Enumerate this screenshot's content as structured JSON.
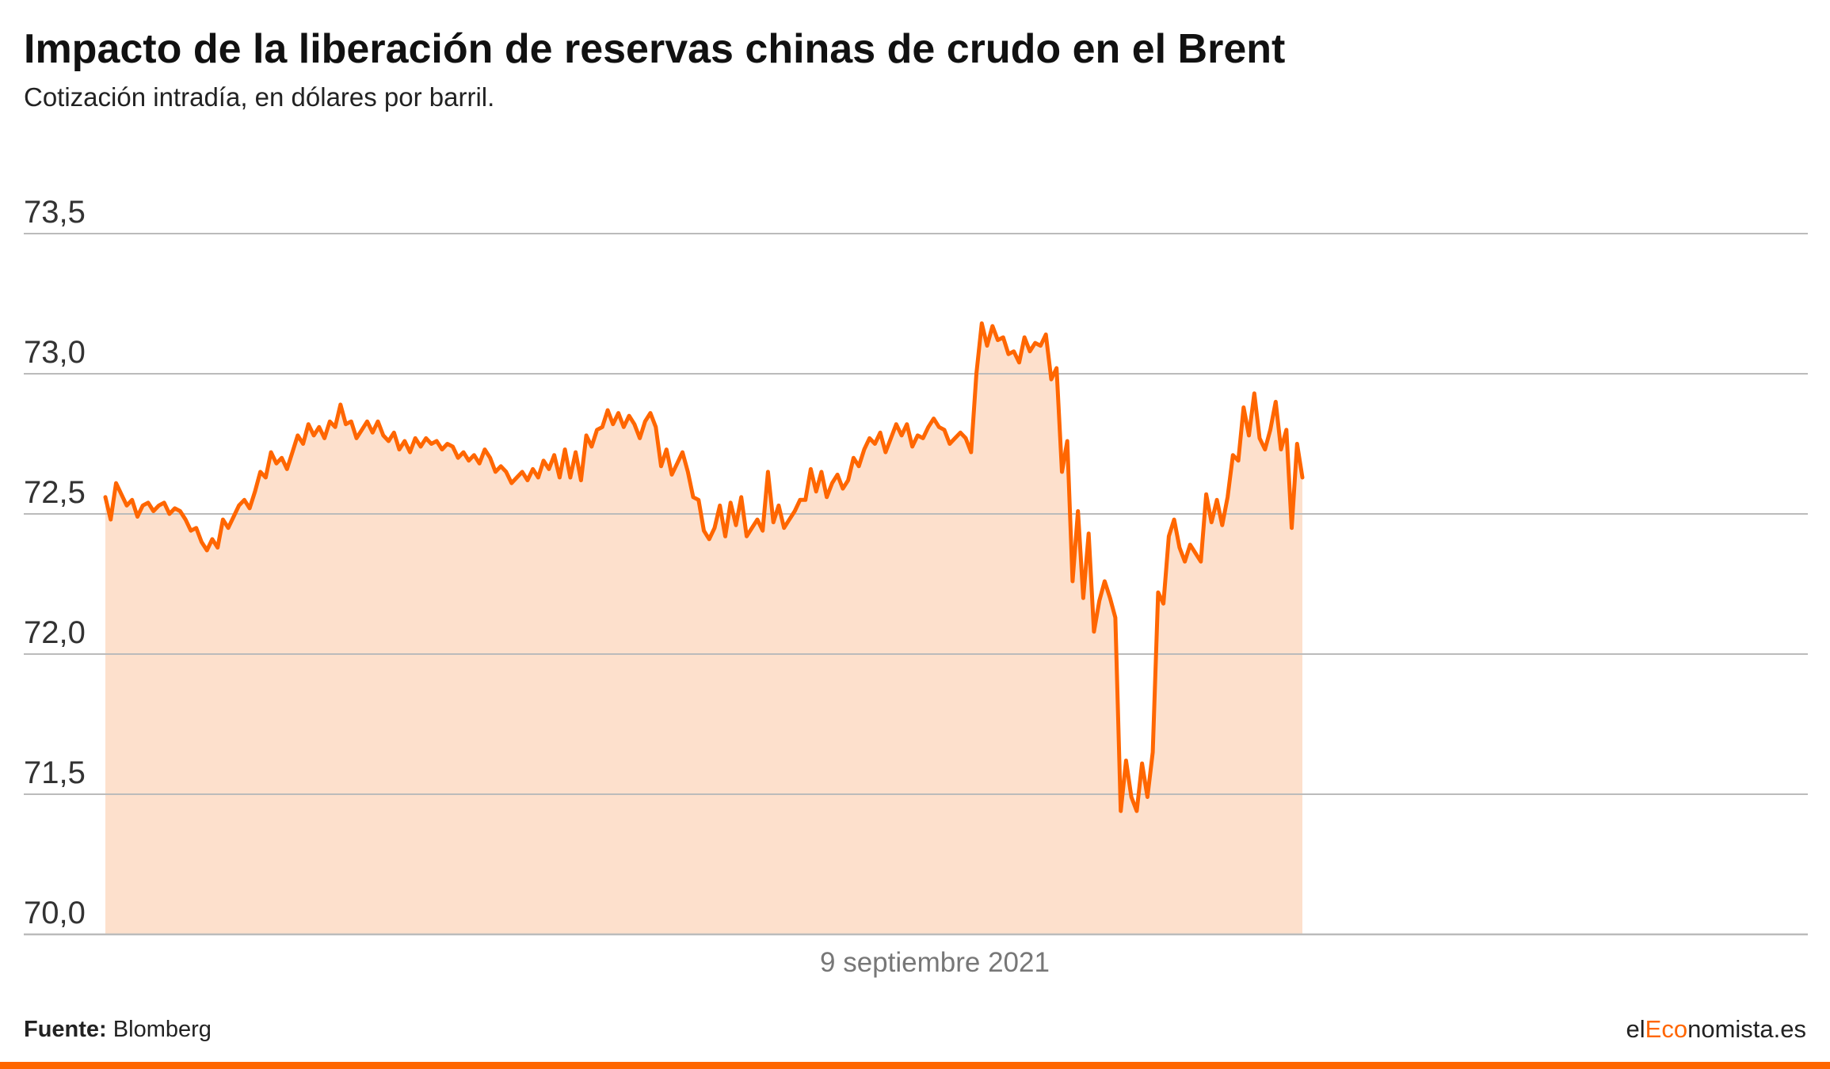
{
  "header": {
    "title": "Impacto de la liberación de reservas chinas de crudo en el Brent",
    "subtitle": "Cotización intradía, en dólares por barril."
  },
  "footer": {
    "source_label": "Fuente:",
    "source_value": "Blomberg",
    "brand_prefix": "el",
    "brand_accent": "Eco",
    "brand_suffix": "nomista.es"
  },
  "colors": {
    "line": "#ff6600",
    "area": "#fde0cc",
    "grid": "#bbbbbb",
    "brand_bar": "#ff6600"
  },
  "chart_data": {
    "type": "area",
    "x_label": "9 septiembre 2021",
    "y_tick_values": [
      70.0,
      71.5,
      72.0,
      72.5,
      73.0,
      73.5
    ],
    "y_tick_labels": [
      "70,0",
      "71,5",
      "72,0",
      "72,5",
      "73,0",
      "73,5"
    ],
    "grid": true,
    "series": [
      {
        "values": [
          72.56,
          72.48,
          72.61,
          72.57,
          72.53,
          72.55,
          72.49,
          72.53,
          72.54,
          72.51,
          72.53,
          72.54,
          72.5,
          72.52,
          72.51,
          72.48,
          72.44,
          72.45,
          72.4,
          72.37,
          72.41,
          72.38,
          72.48,
          72.45,
          72.49,
          72.53,
          72.55,
          72.52,
          72.58,
          72.65,
          72.63,
          72.72,
          72.68,
          72.7,
          72.66,
          72.72,
          72.78,
          72.75,
          72.82,
          72.78,
          72.81,
          72.77,
          72.83,
          72.81,
          72.89,
          72.82,
          72.83,
          72.77,
          72.8,
          72.83,
          72.79,
          72.83,
          72.78,
          72.76,
          72.79,
          72.73,
          72.76,
          72.72,
          72.77,
          72.74,
          72.77,
          72.75,
          72.76,
          72.73,
          72.75,
          72.74,
          72.7,
          72.72,
          72.69,
          72.71,
          72.68,
          72.73,
          72.7,
          72.65,
          72.67,
          72.65,
          72.61,
          72.63,
          72.65,
          72.62,
          72.66,
          72.63,
          72.69,
          72.66,
          72.71,
          72.63,
          72.73,
          72.63,
          72.72,
          72.62,
          72.78,
          72.74,
          72.8,
          72.81,
          72.87,
          72.82,
          72.86,
          72.81,
          72.85,
          72.82,
          72.77,
          72.83,
          72.86,
          72.81,
          72.67,
          72.73,
          72.64,
          72.68,
          72.72,
          72.65,
          72.56,
          72.55,
          72.44,
          72.41,
          72.45,
          72.53,
          72.42,
          72.54,
          72.46,
          72.56,
          72.42,
          72.45,
          72.48,
          72.44,
          72.65,
          72.47,
          72.53,
          72.45,
          72.48,
          72.51,
          72.55,
          72.55,
          72.66,
          72.58,
          72.65,
          72.56,
          72.61,
          72.64,
          72.59,
          72.62,
          72.7,
          72.67,
          72.73,
          72.77,
          72.75,
          72.79,
          72.72,
          72.77,
          72.82,
          72.78,
          72.82,
          72.74,
          72.78,
          72.77,
          72.81,
          72.84,
          72.81,
          72.8,
          72.75,
          72.77,
          72.79,
          72.77,
          72.72,
          73.0,
          73.18,
          73.1,
          73.17,
          73.12,
          73.13,
          73.07,
          73.08,
          73.04,
          73.13,
          73.08,
          73.11,
          73.1,
          73.14,
          72.98,
          73.02,
          72.65,
          72.76,
          72.26,
          72.51,
          72.2,
          72.43,
          72.08,
          72.19,
          72.26,
          72.2,
          72.13,
          71.32,
          71.62,
          71.47,
          71.32,
          71.61,
          71.47,
          71.65,
          72.22,
          72.18,
          72.42,
          72.48,
          72.38,
          72.33,
          72.39,
          72.36,
          72.33,
          72.57,
          72.47,
          72.55,
          72.46,
          72.56,
          72.71,
          72.69,
          72.88,
          72.78,
          72.93,
          72.77,
          72.73,
          72.8,
          72.9,
          72.73,
          72.8,
          72.45,
          72.75,
          72.63
        ]
      }
    ]
  }
}
